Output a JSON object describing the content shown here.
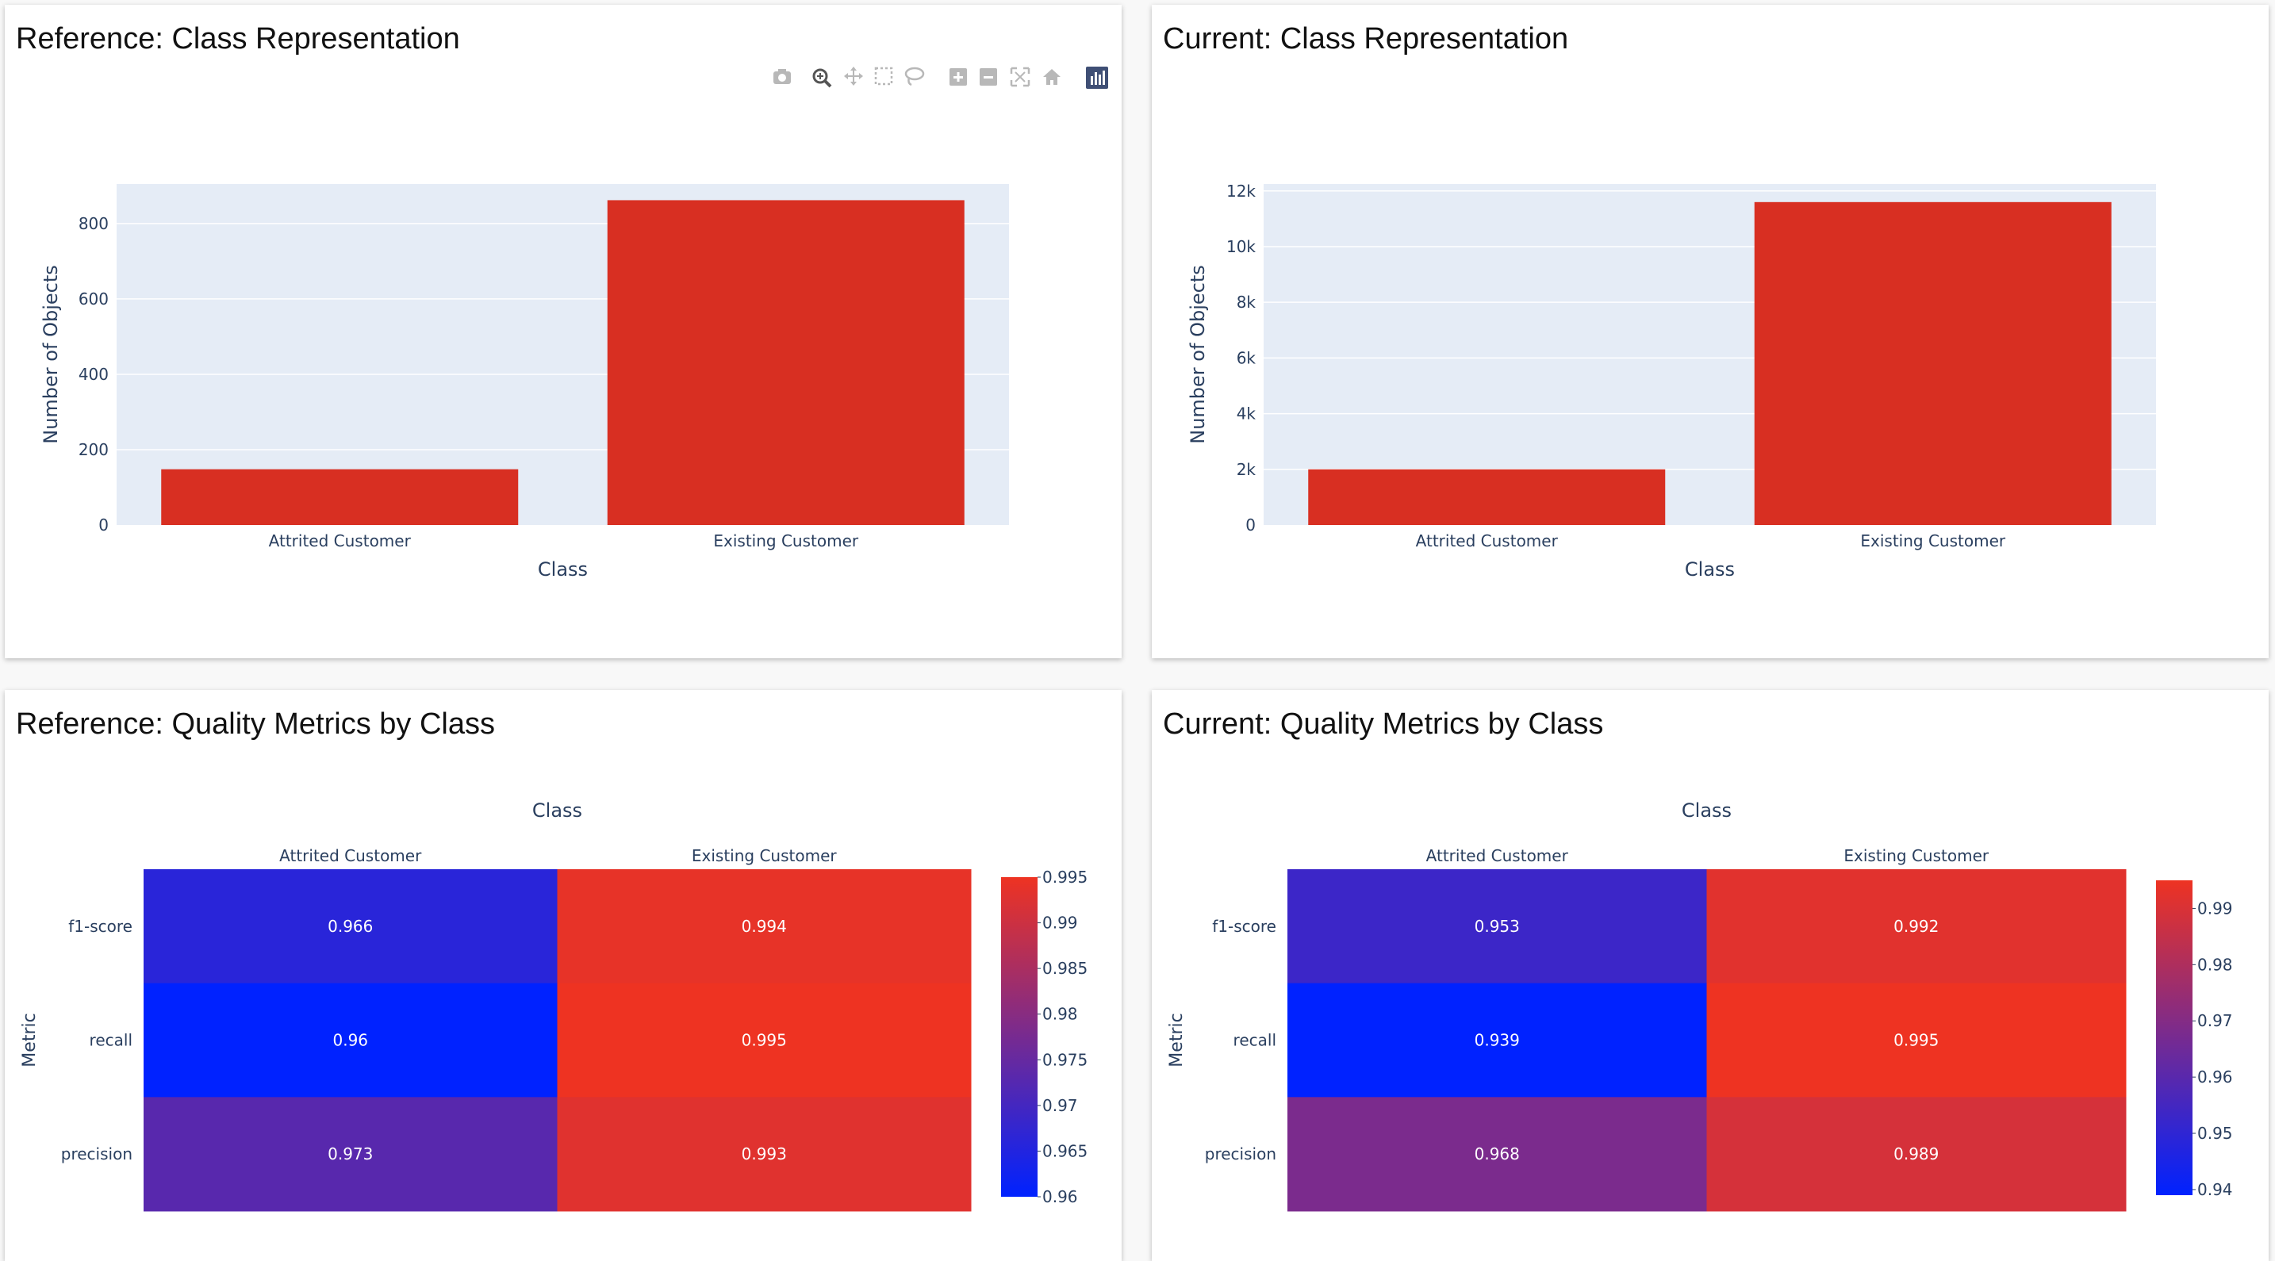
{
  "colors": {
    "bar": "#d82f22",
    "plot_bg": "#e5ecf6",
    "grid": "#ffffff",
    "text": "#2a3f5f",
    "heat_low": "#0022ff",
    "heat_high": "#ee3322"
  },
  "modebar": {
    "icons": [
      "camera-icon",
      "zoom-icon",
      "pan-icon",
      "box-select-icon",
      "lasso-icon",
      "zoom-in-icon",
      "zoom-out-icon",
      "autoscale-icon",
      "home-icon",
      "plotly-logo-icon"
    ]
  },
  "panels": [
    {
      "title": "Reference: Class Representation",
      "chart_data": {
        "type": "bar",
        "categories": [
          "Attrited Customer",
          "Existing Customer"
        ],
        "values": [
          148,
          862
        ],
        "xlabel": "Class",
        "ylabel": "Number of Objects",
        "ylim": [
          0,
          905
        ],
        "yticks": [
          0,
          200,
          400,
          600,
          800
        ],
        "ytick_labels": [
          "0",
          "200",
          "400",
          "600",
          "800"
        ],
        "grid": true
      }
    },
    {
      "title": "Current: Class Representation",
      "chart_data": {
        "type": "bar",
        "categories": [
          "Attrited Customer",
          "Existing Customer"
        ],
        "values": [
          2000,
          11600
        ],
        "xlabel": "Class",
        "ylabel": "Number of Objects",
        "ylim": [
          0,
          12250
        ],
        "yticks": [
          0,
          2000,
          4000,
          6000,
          8000,
          10000,
          12000
        ],
        "ytick_labels": [
          "0",
          "2k",
          "4k",
          "6k",
          "8k",
          "10k",
          "12k"
        ],
        "grid": true
      }
    },
    {
      "title": "Reference: Quality Metrics by Class",
      "chart_data": {
        "type": "heatmap",
        "x": [
          "Attrited Customer",
          "Existing Customer"
        ],
        "y": [
          "f1-score",
          "recall",
          "precision"
        ],
        "z": [
          [
            0.966,
            0.994
          ],
          [
            0.96,
            0.995
          ],
          [
            0.973,
            0.993
          ]
        ],
        "z_labels": [
          [
            "0.966",
            "0.994"
          ],
          [
            "0.96",
            "0.995"
          ],
          [
            "0.973",
            "0.993"
          ]
        ],
        "xlabel": "Class",
        "ylabel": "Metric",
        "zlim": [
          0.96,
          0.995
        ],
        "colorbar_ticks": [
          0.96,
          0.965,
          0.97,
          0.975,
          0.98,
          0.985,
          0.99,
          0.995
        ],
        "colorbar_labels": [
          "0.96",
          "0.965",
          "0.97",
          "0.975",
          "0.98",
          "0.985",
          "0.99",
          "0.995"
        ]
      }
    },
    {
      "title": "Current: Quality Metrics by Class",
      "chart_data": {
        "type": "heatmap",
        "x": [
          "Attrited Customer",
          "Existing Customer"
        ],
        "y": [
          "f1-score",
          "recall",
          "precision"
        ],
        "z": [
          [
            0.953,
            0.992
          ],
          [
            0.939,
            0.995
          ],
          [
            0.968,
            0.989
          ]
        ],
        "z_labels": [
          [
            "0.953",
            "0.992"
          ],
          [
            "0.939",
            "0.995"
          ],
          [
            "0.968",
            "0.989"
          ]
        ],
        "xlabel": "Class",
        "ylabel": "Metric",
        "zlim": [
          0.939,
          0.995
        ],
        "colorbar_ticks": [
          0.94,
          0.95,
          0.96,
          0.97,
          0.98,
          0.99
        ],
        "colorbar_labels": [
          "0.94",
          "0.95",
          "0.96",
          "0.97",
          "0.98",
          "0.99"
        ]
      }
    }
  ]
}
